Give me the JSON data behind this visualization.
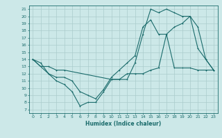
{
  "xlabel": "Humidex (Indice chaleur)",
  "background_color": "#cce8e8",
  "grid_color": "#aacccc",
  "line_color": "#1a6b6b",
  "xlim": [
    -0.5,
    23.5
  ],
  "ylim": [
    6.5,
    21.5
  ],
  "yticks": [
    7,
    8,
    9,
    10,
    11,
    12,
    13,
    14,
    15,
    16,
    17,
    18,
    19,
    20,
    21
  ],
  "xticks": [
    0,
    1,
    2,
    3,
    4,
    5,
    6,
    7,
    8,
    9,
    10,
    11,
    12,
    13,
    14,
    15,
    16,
    17,
    18,
    19,
    20,
    21,
    22,
    23
  ],
  "line1_x": [
    0,
    1,
    2,
    3,
    4,
    10,
    11,
    12,
    13,
    14,
    15,
    16,
    17,
    18,
    19,
    20,
    21,
    22,
    23
  ],
  "line1_y": [
    14,
    13,
    13,
    12.5,
    12.5,
    11.2,
    11.2,
    11.2,
    13.5,
    17.5,
    21,
    20.5,
    21,
    20.5,
    20,
    20,
    15.5,
    14,
    12.5
  ],
  "line2_x": [
    0,
    3,
    4,
    5,
    6,
    7,
    8,
    9,
    10,
    11,
    12,
    13,
    14,
    15,
    16,
    17,
    18,
    19,
    20,
    21,
    22,
    23
  ],
  "line2_y": [
    14,
    11,
    10.5,
    9.5,
    7.5,
    8,
    8,
    9.5,
    11.2,
    11.2,
    12,
    12,
    12,
    12.5,
    12.8,
    17.5,
    12.8,
    12.8,
    12.8,
    12.5,
    12.5,
    12.5
  ],
  "line3_x": [
    0,
    1,
    2,
    3,
    4,
    5,
    6,
    7,
    8,
    9,
    10,
    11,
    12,
    13,
    14,
    15,
    16,
    17,
    18,
    19,
    20,
    21,
    22,
    23
  ],
  "line3_y": [
    14,
    13.5,
    12,
    11.5,
    11.5,
    11,
    9.5,
    9,
    8.5,
    9.8,
    11.5,
    12.5,
    13.5,
    14.5,
    18.5,
    19.5,
    17.5,
    17.5,
    18.5,
    19,
    20,
    18.5,
    14,
    12.5
  ]
}
